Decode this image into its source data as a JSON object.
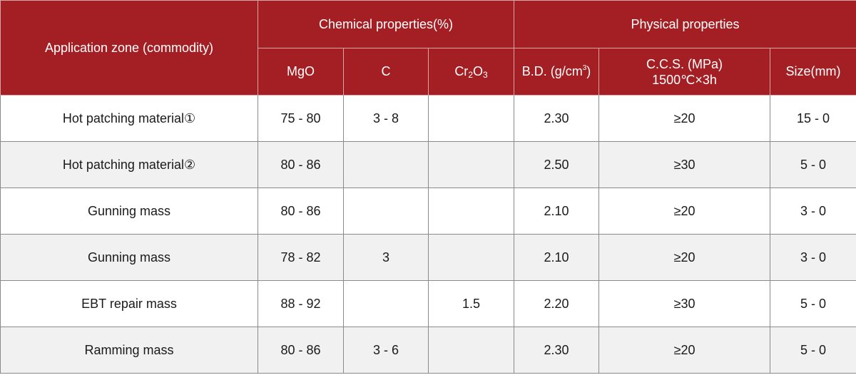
{
  "header": {
    "application_zone": "Application zone (commodity)",
    "chemical_group": "Chemical properties(%)",
    "physical_group": "Physical properties",
    "mgo": "MgO",
    "c": "C",
    "cr2o3_cr": "Cr",
    "cr2o3_2": "2",
    "cr2o3_o": "O",
    "cr2o3_3": "3",
    "bd_prefix": "B.D. (g/cm",
    "bd_sup": "3",
    "bd_suffix": ")",
    "ccs_line1": "C.C.S. (MPa)",
    "ccs_line2": "1500℃×3h",
    "size": "Size(mm)"
  },
  "rows": [
    {
      "zone": "Hot patching material①",
      "mgo": "75 - 80",
      "c": "3 - 8",
      "cr2o3": "",
      "bd": "2.30",
      "ccs": "≥20",
      "size": "15 - 0"
    },
    {
      "zone": "Hot patching material②",
      "mgo": "80 - 86",
      "c": "",
      "cr2o3": "",
      "bd": "2.50",
      "ccs": "≥30",
      "size": "5 - 0"
    },
    {
      "zone": "Gunning mass",
      "mgo": "80 - 86",
      "c": "",
      "cr2o3": "",
      "bd": "2.10",
      "ccs": "≥20",
      "size": "3 - 0"
    },
    {
      "zone": "Gunning mass",
      "mgo": "78 - 82",
      "c": "3",
      "cr2o3": "",
      "bd": "2.10",
      "ccs": "≥20",
      "size": "3 - 0"
    },
    {
      "zone": "EBT repair mass",
      "mgo": "88 - 92",
      "c": "",
      "cr2o3": "1.5",
      "bd": "2.20",
      "ccs": "≥30",
      "size": "5 - 0"
    },
    {
      "zone": "Ramming mass",
      "mgo": "80 - 86",
      "c": "3 - 6",
      "cr2o3": "",
      "bd": "2.30",
      "ccs": "≥20",
      "size": "5 - 0"
    }
  ],
  "colors": {
    "header_bg": "#a41f24",
    "header_text": "#ffffff",
    "stripe_bg": "#f1f1f1",
    "border": "#8a8a8a"
  }
}
